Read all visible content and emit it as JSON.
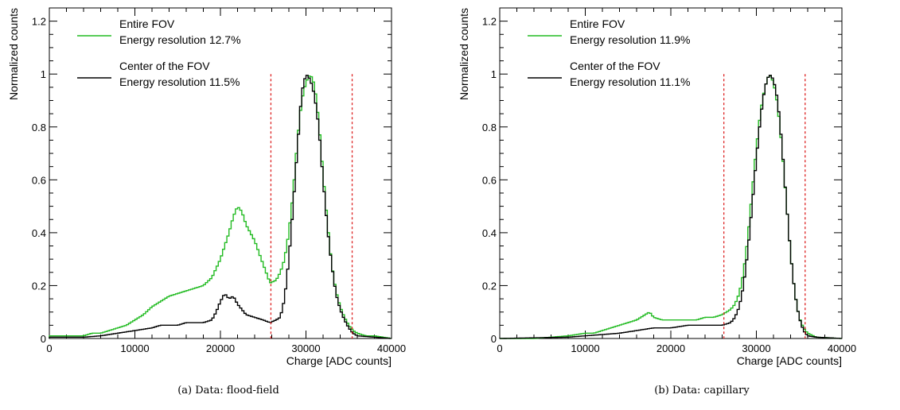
{
  "chart_data": [
    {
      "type": "line",
      "subtype": "step-histogram",
      "title": "",
      "xlabel": "Charge [ADC counts]",
      "ylabel": "Normalized counts",
      "xlim": [
        0,
        40000
      ],
      "ylim": [
        0,
        1.25
      ],
      "xticks": [
        "0",
        "10000",
        "20000",
        "30000",
        "40000"
      ],
      "yticks": [
        "0",
        "0.2",
        "0.4",
        "0.6",
        "0.8",
        "1",
        "1.2"
      ],
      "legend": [
        {
          "line1": "Entire FOV",
          "line2": "Energy resolution 12.7%",
          "color": "#22bb22"
        },
        {
          "line1": "Center of the FOV",
          "line2": "Energy resolution 11.5%",
          "color": "#000000"
        }
      ],
      "cut_lines": [
        25900,
        35400
      ],
      "cut_color": "#dd2222",
      "series": [
        {
          "name": "Entire FOV",
          "color": "#22bb22",
          "points": [
            [
              0,
              0.01
            ],
            [
              2000,
              0.01
            ],
            [
              4000,
              0.01
            ],
            [
              5000,
              0.02
            ],
            [
              6000,
              0.02
            ],
            [
              7000,
              0.03
            ],
            [
              8000,
              0.04
            ],
            [
              9000,
              0.05
            ],
            [
              10000,
              0.07
            ],
            [
              11000,
              0.09
            ],
            [
              12000,
              0.12
            ],
            [
              13000,
              0.14
            ],
            [
              14000,
              0.16
            ],
            [
              15000,
              0.17
            ],
            [
              16000,
              0.18
            ],
            [
              17000,
              0.19
            ],
            [
              18000,
              0.2
            ],
            [
              19000,
              0.23
            ],
            [
              20000,
              0.3
            ],
            [
              21000,
              0.4
            ],
            [
              21500,
              0.46
            ],
            [
              22000,
              0.5
            ],
            [
              22500,
              0.48
            ],
            [
              23000,
              0.43
            ],
            [
              24000,
              0.37
            ],
            [
              25000,
              0.28
            ],
            [
              25800,
              0.21
            ],
            [
              26500,
              0.22
            ],
            [
              27000,
              0.25
            ],
            [
              27500,
              0.3
            ],
            [
              28000,
              0.4
            ],
            [
              28500,
              0.55
            ],
            [
              29000,
              0.75
            ],
            [
              29500,
              0.9
            ],
            [
              30000,
              0.97
            ],
            [
              30500,
              1.0
            ],
            [
              31000,
              0.96
            ],
            [
              31500,
              0.82
            ],
            [
              32000,
              0.62
            ],
            [
              32500,
              0.44
            ],
            [
              33000,
              0.28
            ],
            [
              33500,
              0.18
            ],
            [
              34000,
              0.12
            ],
            [
              34500,
              0.08
            ],
            [
              35000,
              0.05
            ],
            [
              35500,
              0.03
            ],
            [
              36000,
              0.02
            ],
            [
              37000,
              0.01
            ],
            [
              38000,
              0.01
            ],
            [
              40000,
              0.0
            ]
          ]
        },
        {
          "name": "Center of the FOV",
          "color": "#000000",
          "points": [
            [
              0,
              0.005
            ],
            [
              2000,
              0.005
            ],
            [
              4000,
              0.005
            ],
            [
              6000,
              0.01
            ],
            [
              8000,
              0.02
            ],
            [
              10000,
              0.03
            ],
            [
              12000,
              0.04
            ],
            [
              13000,
              0.05
            ],
            [
              14000,
              0.05
            ],
            [
              15000,
              0.05
            ],
            [
              16000,
              0.06
            ],
            [
              17000,
              0.06
            ],
            [
              18000,
              0.06
            ],
            [
              19000,
              0.07
            ],
            [
              19500,
              0.1
            ],
            [
              20000,
              0.14
            ],
            [
              20500,
              0.17
            ],
            [
              21000,
              0.15
            ],
            [
              21500,
              0.16
            ],
            [
              22000,
              0.13
            ],
            [
              22500,
              0.11
            ],
            [
              23000,
              0.09
            ],
            [
              24000,
              0.08
            ],
            [
              25000,
              0.07
            ],
            [
              25800,
              0.06
            ],
            [
              26500,
              0.07
            ],
            [
              27000,
              0.08
            ],
            [
              27500,
              0.15
            ],
            [
              28000,
              0.3
            ],
            [
              28500,
              0.5
            ],
            [
              29000,
              0.72
            ],
            [
              29500,
              0.93
            ],
            [
              30000,
              1.0
            ],
            [
              30500,
              0.98
            ],
            [
              31000,
              0.92
            ],
            [
              31500,
              0.8
            ],
            [
              32000,
              0.6
            ],
            [
              32500,
              0.42
            ],
            [
              33000,
              0.28
            ],
            [
              33500,
              0.17
            ],
            [
              34000,
              0.11
            ],
            [
              34500,
              0.07
            ],
            [
              35000,
              0.04
            ],
            [
              35500,
              0.02
            ],
            [
              36000,
              0.01
            ],
            [
              38000,
              0.005
            ],
            [
              40000,
              0.0
            ]
          ]
        }
      ]
    },
    {
      "type": "line",
      "subtype": "step-histogram",
      "title": "",
      "xlabel": "Charge [ADC counts]",
      "ylabel": "Normalized counts",
      "xlim": [
        0,
        40000
      ],
      "ylim": [
        0,
        1.25
      ],
      "xticks": [
        "0",
        "10000",
        "20000",
        "30000",
        "40000"
      ],
      "yticks": [
        "0",
        "0.2",
        "0.4",
        "0.6",
        "0.8",
        "1",
        "1.2"
      ],
      "legend": [
        {
          "line1": "Entire FOV",
          "line2": "Energy resolution 11.9%",
          "color": "#22bb22"
        },
        {
          "line1": "Center of the FOV",
          "line2": "Energy resolution 11.1%",
          "color": "#000000"
        }
      ],
      "cut_lines": [
        26200,
        35700
      ],
      "cut_color": "#dd2222",
      "series": [
        {
          "name": "Entire FOV",
          "color": "#22bb22",
          "points": [
            [
              0,
              0.0
            ],
            [
              4000,
              0.0
            ],
            [
              6000,
              0.005
            ],
            [
              8000,
              0.01
            ],
            [
              10000,
              0.02
            ],
            [
              11000,
              0.02
            ],
            [
              12000,
              0.03
            ],
            [
              13000,
              0.04
            ],
            [
              14000,
              0.05
            ],
            [
              15000,
              0.06
            ],
            [
              16000,
              0.07
            ],
            [
              17000,
              0.09
            ],
            [
              17500,
              0.1
            ],
            [
              18000,
              0.08
            ],
            [
              19000,
              0.07
            ],
            [
              20000,
              0.07
            ],
            [
              21000,
              0.07
            ],
            [
              22000,
              0.07
            ],
            [
              23000,
              0.07
            ],
            [
              24000,
              0.08
            ],
            [
              25000,
              0.08
            ],
            [
              26000,
              0.09
            ],
            [
              27000,
              0.11
            ],
            [
              27500,
              0.13
            ],
            [
              28000,
              0.17
            ],
            [
              28500,
              0.25
            ],
            [
              29000,
              0.38
            ],
            [
              29500,
              0.55
            ],
            [
              30000,
              0.72
            ],
            [
              30500,
              0.86
            ],
            [
              31000,
              0.95
            ],
            [
              31500,
              1.0
            ],
            [
              32000,
              0.97
            ],
            [
              32500,
              0.88
            ],
            [
              33000,
              0.72
            ],
            [
              33500,
              0.52
            ],
            [
              34000,
              0.32
            ],
            [
              34500,
              0.17
            ],
            [
              35000,
              0.08
            ],
            [
              35500,
              0.04
            ],
            [
              36000,
              0.02
            ],
            [
              37000,
              0.005
            ],
            [
              40000,
              0.0
            ]
          ]
        },
        {
          "name": "Center of the FOV",
          "color": "#000000",
          "points": [
            [
              0,
              0.0
            ],
            [
              8000,
              0.005
            ],
            [
              10000,
              0.01
            ],
            [
              12000,
              0.015
            ],
            [
              14000,
              0.02
            ],
            [
              16000,
              0.03
            ],
            [
              18000,
              0.04
            ],
            [
              20000,
              0.04
            ],
            [
              22000,
              0.05
            ],
            [
              24000,
              0.05
            ],
            [
              25000,
              0.05
            ],
            [
              26000,
              0.05
            ],
            [
              27000,
              0.06
            ],
            [
              27500,
              0.08
            ],
            [
              28000,
              0.12
            ],
            [
              28500,
              0.2
            ],
            [
              29000,
              0.33
            ],
            [
              29500,
              0.5
            ],
            [
              30000,
              0.68
            ],
            [
              30500,
              0.84
            ],
            [
              31000,
              0.95
            ],
            [
              31500,
              1.0
            ],
            [
              32000,
              0.98
            ],
            [
              32500,
              0.9
            ],
            [
              33000,
              0.73
            ],
            [
              33500,
              0.52
            ],
            [
              34000,
              0.32
            ],
            [
              34500,
              0.17
            ],
            [
              35000,
              0.08
            ],
            [
              35500,
              0.03
            ],
            [
              36000,
              0.01
            ],
            [
              37000,
              0.005
            ],
            [
              40000,
              0.0
            ]
          ]
        }
      ]
    }
  ],
  "captions": [
    "(a) Data: flood-field",
    "(b) Data: capillary"
  ]
}
